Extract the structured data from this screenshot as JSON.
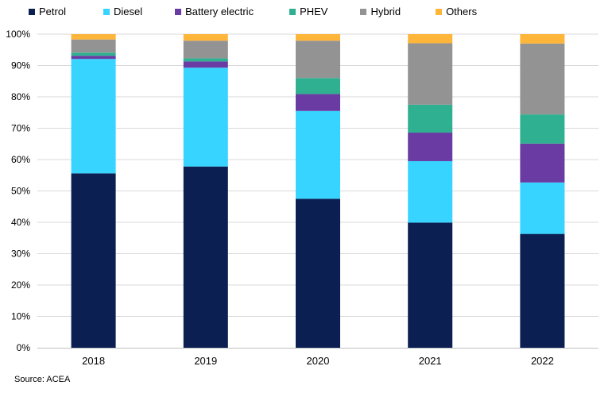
{
  "chart_data": {
    "type": "bar",
    "stacked": true,
    "categories": [
      "2018",
      "2019",
      "2020",
      "2021",
      "2022"
    ],
    "series": [
      {
        "name": "Petrol",
        "color": "#0b1f52",
        "values": [
          55.6,
          57.8,
          47.5,
          39.9,
          36.3
        ]
      },
      {
        "name": "Diesel",
        "color": "#36d4ff",
        "values": [
          36.5,
          31.5,
          28.0,
          19.6,
          16.4
        ]
      },
      {
        "name": "Battery electric",
        "color": "#6a3ba2",
        "values": [
          1.0,
          2.0,
          5.4,
          9.1,
          12.4
        ]
      },
      {
        "name": "PHEV",
        "color": "#2fb191",
        "values": [
          1.0,
          1.0,
          5.1,
          8.9,
          9.3
        ]
      },
      {
        "name": "Hybrid",
        "color": "#939393",
        "values": [
          4.2,
          5.6,
          11.9,
          19.6,
          22.6
        ]
      },
      {
        "name": "Others",
        "color": "#fdb53a",
        "values": [
          1.7,
          2.1,
          2.1,
          2.9,
          3.0
        ]
      }
    ],
    "y_ticks": [
      "0%",
      "10%",
      "20%",
      "30%",
      "40%",
      "50%",
      "60%",
      "70%",
      "80%",
      "90%",
      "100%"
    ],
    "ylim": [
      0,
      100
    ],
    "grid": true,
    "legend_position": "top",
    "title": "",
    "xlabel": "",
    "ylabel": ""
  },
  "source": "Source: ACEA"
}
